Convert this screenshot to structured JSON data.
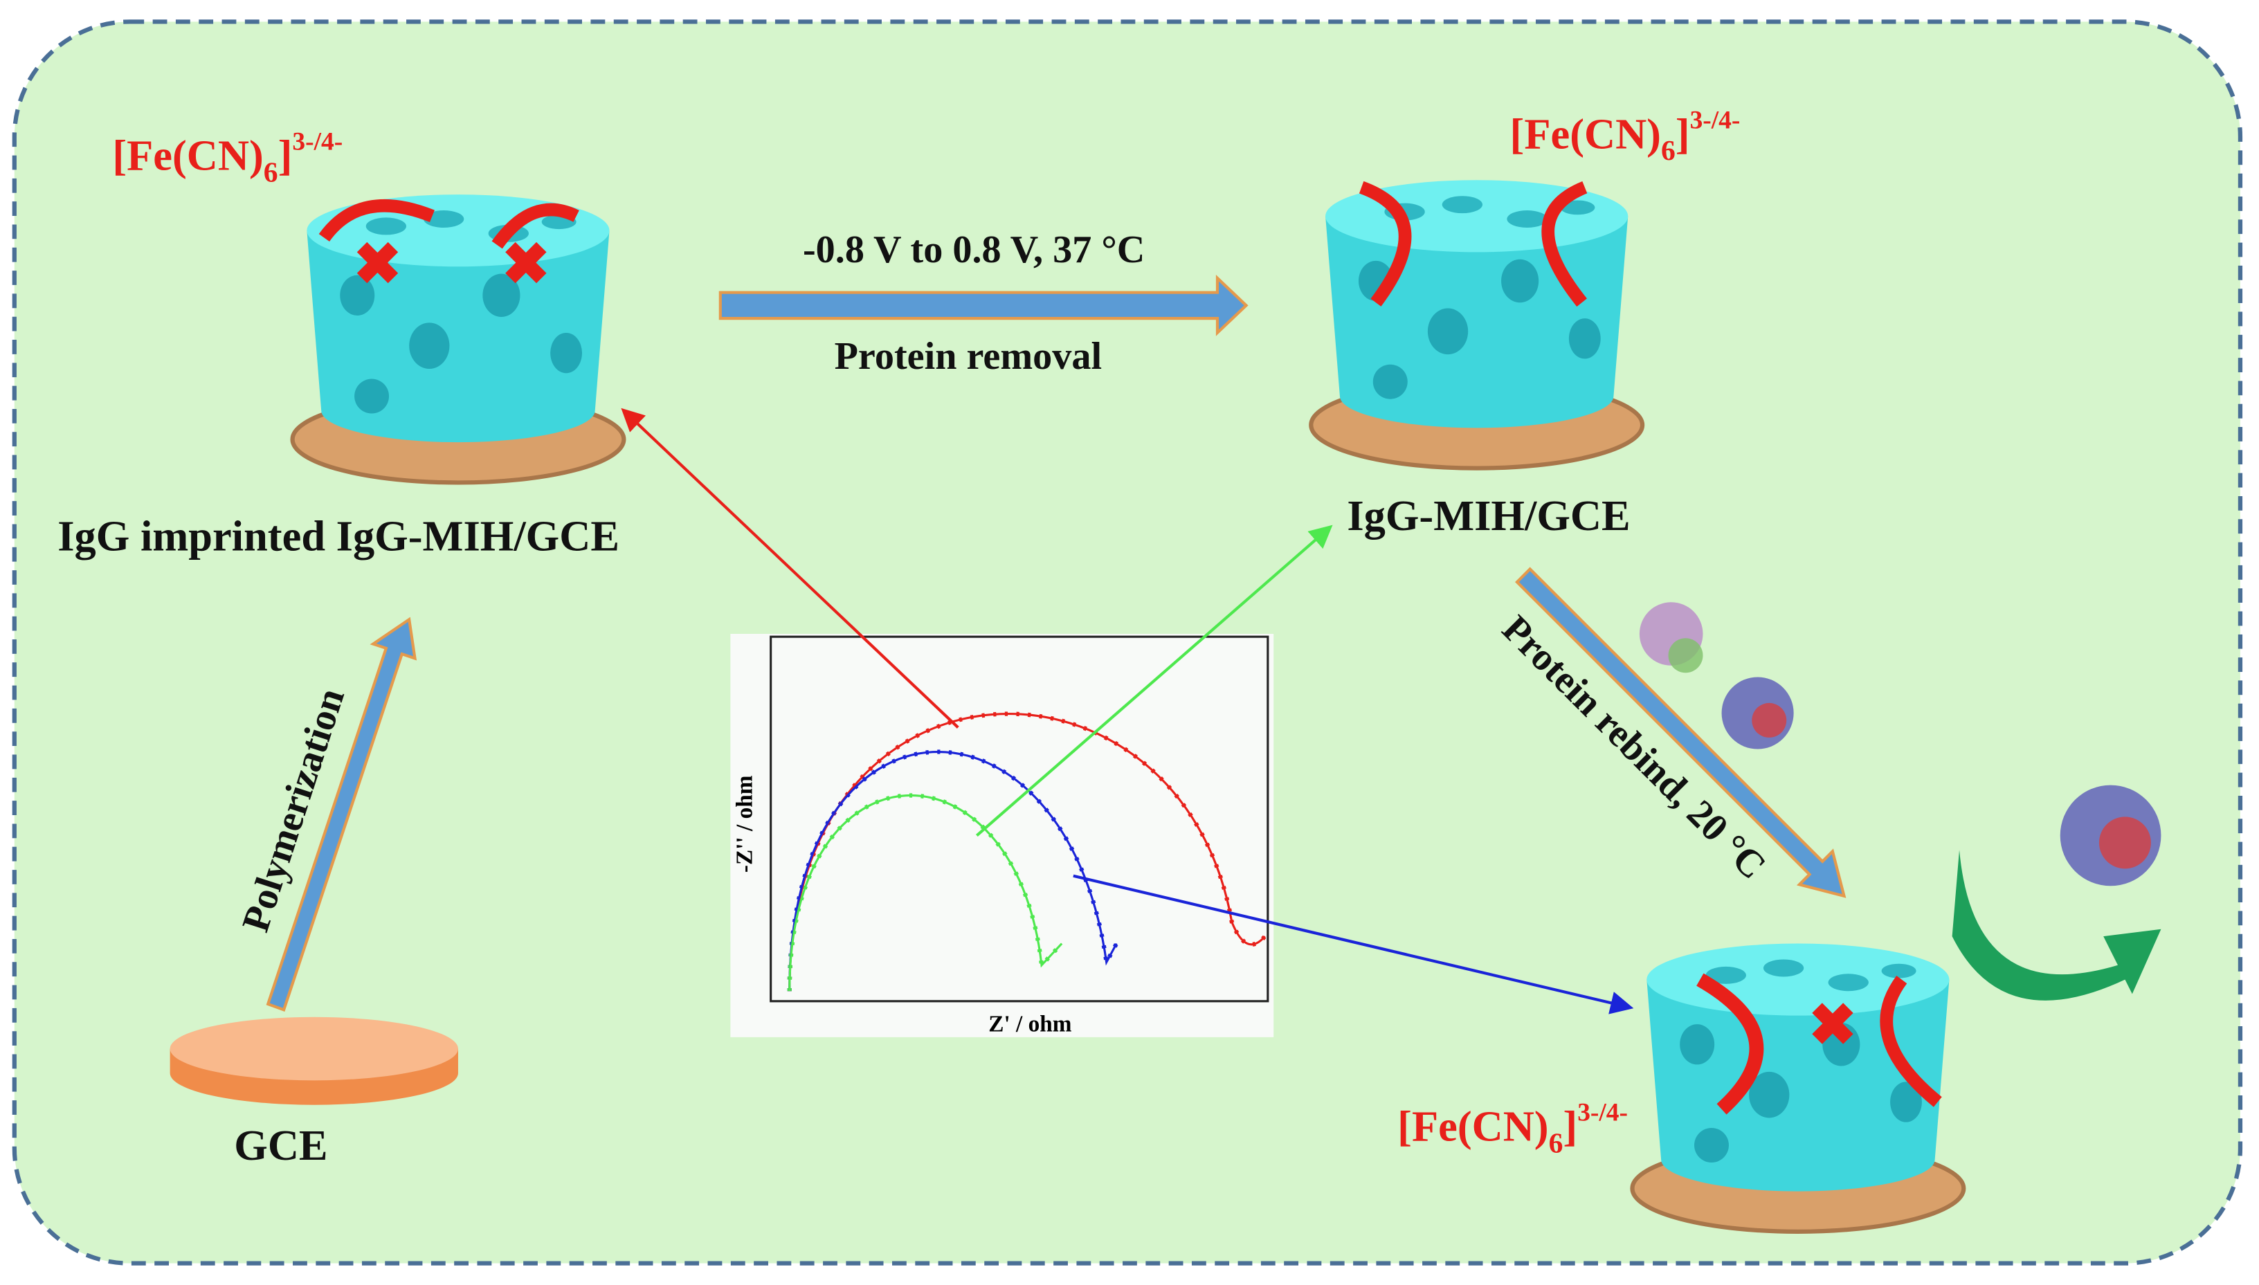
{
  "ion_labels": [
    {
      "prefix": "[Fe(CN)",
      "subscript": "6",
      "suffix": "]",
      "superscript": "3-/4-"
    },
    {
      "prefix": "[Fe(CN)",
      "subscript": "6",
      "suffix": "]",
      "superscript": "3-/4-"
    },
    {
      "prefix": "[Fe(CN)",
      "subscript": "6",
      "suffix": "]",
      "superscript": "3-/4-"
    }
  ],
  "steps": {
    "removal_condition": "-0.8 V to 0.8 V, 37 °C",
    "removal": "Protein removal",
    "polymerization": "Polymerization",
    "rebind": "Protein rebind, 20 °C"
  },
  "electrodes": {
    "imprinted": "IgG imprinted IgG-MIH/GCE",
    "removed": "IgG-MIH/GCE",
    "bare": "GCE"
  },
  "inset_plot": {
    "y_label": "-Z'' / ohm",
    "x_label": "Z' / ohm"
  }
}
